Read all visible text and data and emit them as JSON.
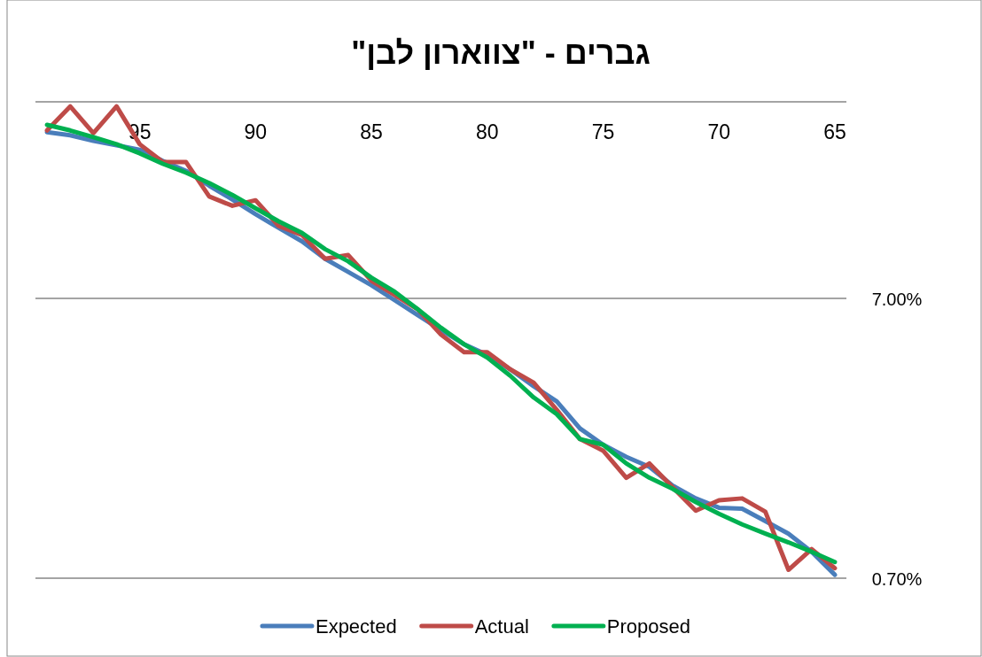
{
  "chart_data": {
    "type": "line",
    "title": "גברים - \"צווארון לבן\"",
    "x": [
      99,
      98,
      97,
      96,
      95,
      94,
      93,
      92,
      91,
      90,
      89,
      88,
      87,
      86,
      85,
      84,
      83,
      82,
      81,
      80,
      79,
      78,
      77,
      76,
      75,
      74,
      73,
      72,
      71,
      70,
      69,
      68,
      67,
      66,
      65
    ],
    "series": [
      {
        "name": "Expected",
        "color": "#4a7ebb",
        "values": [
          27.5,
          26.8,
          25.6,
          24.7,
          23.8,
          21.7,
          20.0,
          17.7,
          15.8,
          14.0,
          12.5,
          11.2,
          9.7,
          8.7,
          7.8,
          6.9,
          6.1,
          5.4,
          4.8,
          4.4,
          3.9,
          3.4,
          3.0,
          2.4,
          2.1,
          1.9,
          1.75,
          1.5,
          1.35,
          1.25,
          1.24,
          1.12,
          1.01,
          0.87,
          0.72
        ]
      },
      {
        "name": "Actual",
        "color": "#be4b48",
        "values": [
          27.9,
          34.0,
          27.3,
          34.0,
          24.9,
          21.5,
          21.5,
          16.2,
          15.0,
          15.7,
          12.7,
          11.8,
          9.7,
          10.0,
          8.1,
          7.2,
          6.4,
          5.2,
          4.5,
          4.5,
          3.9,
          3.5,
          2.8,
          2.2,
          2.0,
          1.6,
          1.8,
          1.48,
          1.22,
          1.33,
          1.35,
          1.21,
          0.75,
          0.89,
          0.76
        ]
      },
      {
        "name": "Proposed",
        "color": "#00b050",
        "values": [
          29.2,
          27.9,
          26.4,
          24.9,
          23.1,
          21.2,
          19.7,
          18.1,
          16.4,
          14.7,
          13.2,
          12.0,
          10.5,
          9.5,
          8.3,
          7.4,
          6.4,
          5.5,
          4.8,
          4.3,
          3.7,
          3.1,
          2.7,
          2.2,
          2.1,
          1.8,
          1.6,
          1.46,
          1.31,
          1.19,
          1.09,
          1.01,
          0.94,
          0.87,
          0.8
        ]
      }
    ],
    "xlim": [
      99.5,
      64.5
    ],
    "xticks": [
      95,
      90,
      85,
      80,
      75,
      70,
      65
    ],
    "ylim": [
      0.7,
      35.3
    ],
    "yticks": [
      {
        "value": 0.7,
        "label": "0.70%"
      },
      {
        "value": 7,
        "label": "7.00%"
      }
    ],
    "log": true,
    "grid": "y",
    "legend": "bottom",
    "marker": "none",
    "line_style": "solid"
  }
}
